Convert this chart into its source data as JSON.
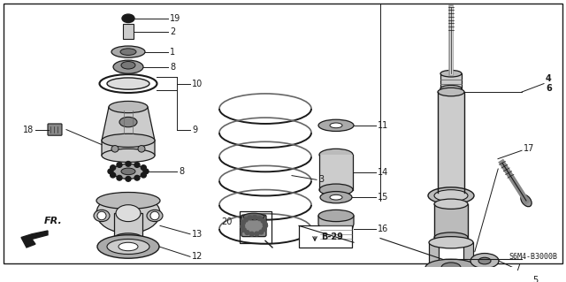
{
  "bg_color": "#ffffff",
  "border_color": "#000000",
  "dark_color": "#1a1a1a",
  "mid_color": "#666666",
  "light_color": "#cccccc",
  "diagram_code": "S6M4-B3000B"
}
